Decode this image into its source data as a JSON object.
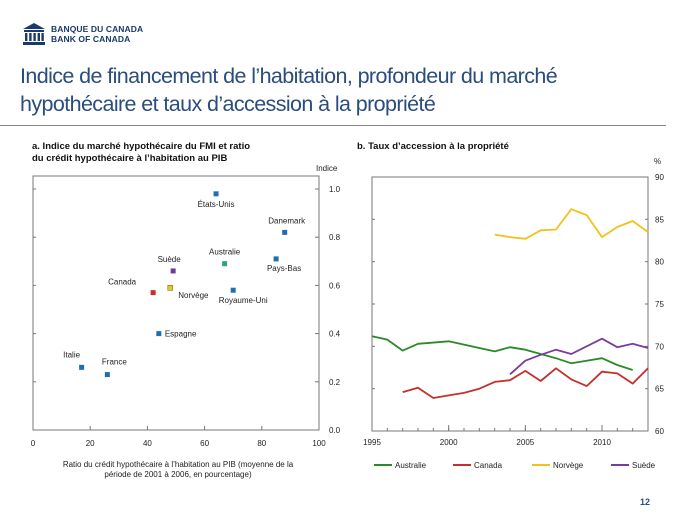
{
  "header": {
    "logo_fr": "BANQUE DU CANADA",
    "logo_en": "BANK OF CANADA",
    "title_line1": "Indice de financement de l’habitation, profondeur du marché",
    "title_line2": "hypothécaire et taux d’accession à la propriété",
    "page_number": "12"
  },
  "colors": {
    "brand": "#2a4d7e",
    "scatter_default": "#1f6fb0",
    "australia": "#2aa57b",
    "canada": "#c4302b",
    "norway": "#e8c02a",
    "sweden": "#6a3d9a",
    "australia_line": "#2a8a2a",
    "canada_line": "#c4302b",
    "norway_line": "#f0c21e",
    "sweden_line": "#7a3c9a"
  },
  "chart_data": [
    {
      "type": "scatter",
      "title_line1": "a. Indice du marché hypothécaire du FMI et ratio",
      "title_line2": "du crédit hypothécaire à l’habitation au PIB",
      "xlabel_line1": "Ratio du crédit hypothécaire à l’habitation au PIB (moyenne de la",
      "xlabel_line2": "période de 2001 à 2006, en pourcentage)",
      "ylabel": "Indice",
      "xlim": [
        0,
        100
      ],
      "ylim": [
        0,
        1.0
      ],
      "xticks": [
        "0",
        "20",
        "40",
        "60",
        "80",
        "100"
      ],
      "yticks": [
        "0.0",
        "0.2",
        "0.4",
        "0.6",
        "0.8",
        "1.0"
      ],
      "points": [
        {
          "label": "États-Unis",
          "x": 64,
          "y": 0.98,
          "color": "#1f6fb0"
        },
        {
          "label": "Danemark",
          "x": 88,
          "y": 0.82,
          "color": "#1f6fb0"
        },
        {
          "label": "Australie",
          "x": 67,
          "y": 0.69,
          "color": "#2aa57b"
        },
        {
          "label": "Pays-Bas",
          "x": 85,
          "y": 0.71,
          "color": "#1f6fb0"
        },
        {
          "label": "Suède",
          "x": 49,
          "y": 0.66,
          "color": "#6a3d9a"
        },
        {
          "label": "Canada",
          "x": 42,
          "y": 0.57,
          "color": "#c4302b"
        },
        {
          "label": "Norvège",
          "x": 48,
          "y": 0.59,
          "color": "#e8c02a"
        },
        {
          "label": "Royaume-Uni",
          "x": 70,
          "y": 0.58,
          "color": "#1f6fb0"
        },
        {
          "label": "Espagne",
          "x": 44,
          "y": 0.4,
          "color": "#1f6fb0"
        },
        {
          "label": "Italie",
          "x": 17,
          "y": 0.26,
          "color": "#1f6fb0"
        },
        {
          "label": "France",
          "x": 26,
          "y": 0.23,
          "color": "#1f6fb0"
        }
      ]
    },
    {
      "type": "line",
      "title": "b. Taux d’accession à la propriété",
      "ylabel": "%",
      "xlim": [
        1995,
        2013
      ],
      "ylim": [
        60,
        90
      ],
      "xticks": [
        "1995",
        "2000",
        "2005",
        "2010"
      ],
      "yticks": [
        "60",
        "65",
        "70",
        "75",
        "80",
        "85",
        "90"
      ],
      "legend_position": "bottom",
      "series": [
        {
          "name": "Australie",
          "color": "#2a8a2a",
          "x": [
            1995,
            1996,
            1997,
            1998,
            2000,
            2003,
            2004,
            2005,
            2006,
            2007,
            2008,
            2009,
            2010,
            2011,
            2012
          ],
          "y": [
            71.2,
            70.8,
            69.5,
            70.3,
            70.6,
            69.4,
            69.9,
            69.6,
            69.1,
            68.6,
            68.0,
            68.3,
            68.6,
            67.8,
            67.2
          ]
        },
        {
          "name": "Canada",
          "color": "#c4302b",
          "x": [
            1997,
            1998,
            1999,
            2000,
            2001,
            2002,
            2003,
            2004,
            2005,
            2006,
            2007,
            2008,
            2009,
            2010,
            2011,
            2012,
            2013
          ],
          "y": [
            64.6,
            65.1,
            63.9,
            64.2,
            64.5,
            65.0,
            65.8,
            66.0,
            67.1,
            65.9,
            67.4,
            66.1,
            65.3,
            67.0,
            66.8,
            65.6,
            67.4
          ]
        },
        {
          "name": "Norvège",
          "color": "#f0c21e",
          "x": [
            2003,
            2004,
            2005,
            2006,
            2007,
            2008,
            2009,
            2010,
            2011,
            2012,
            2013
          ],
          "y": [
            83.2,
            82.9,
            82.7,
            83.7,
            83.8,
            86.2,
            85.5,
            82.9,
            84.1,
            84.8,
            83.5
          ]
        },
        {
          "name": "Suède",
          "color": "#7a3c9a",
          "x": [
            2004,
            2005,
            2006,
            2007,
            2008,
            2009,
            2010,
            2011,
            2012,
            2013
          ],
          "y": [
            66.7,
            68.3,
            69.0,
            69.6,
            69.1,
            70.0,
            70.9,
            69.9,
            70.3,
            69.8
          ]
        }
      ]
    }
  ]
}
